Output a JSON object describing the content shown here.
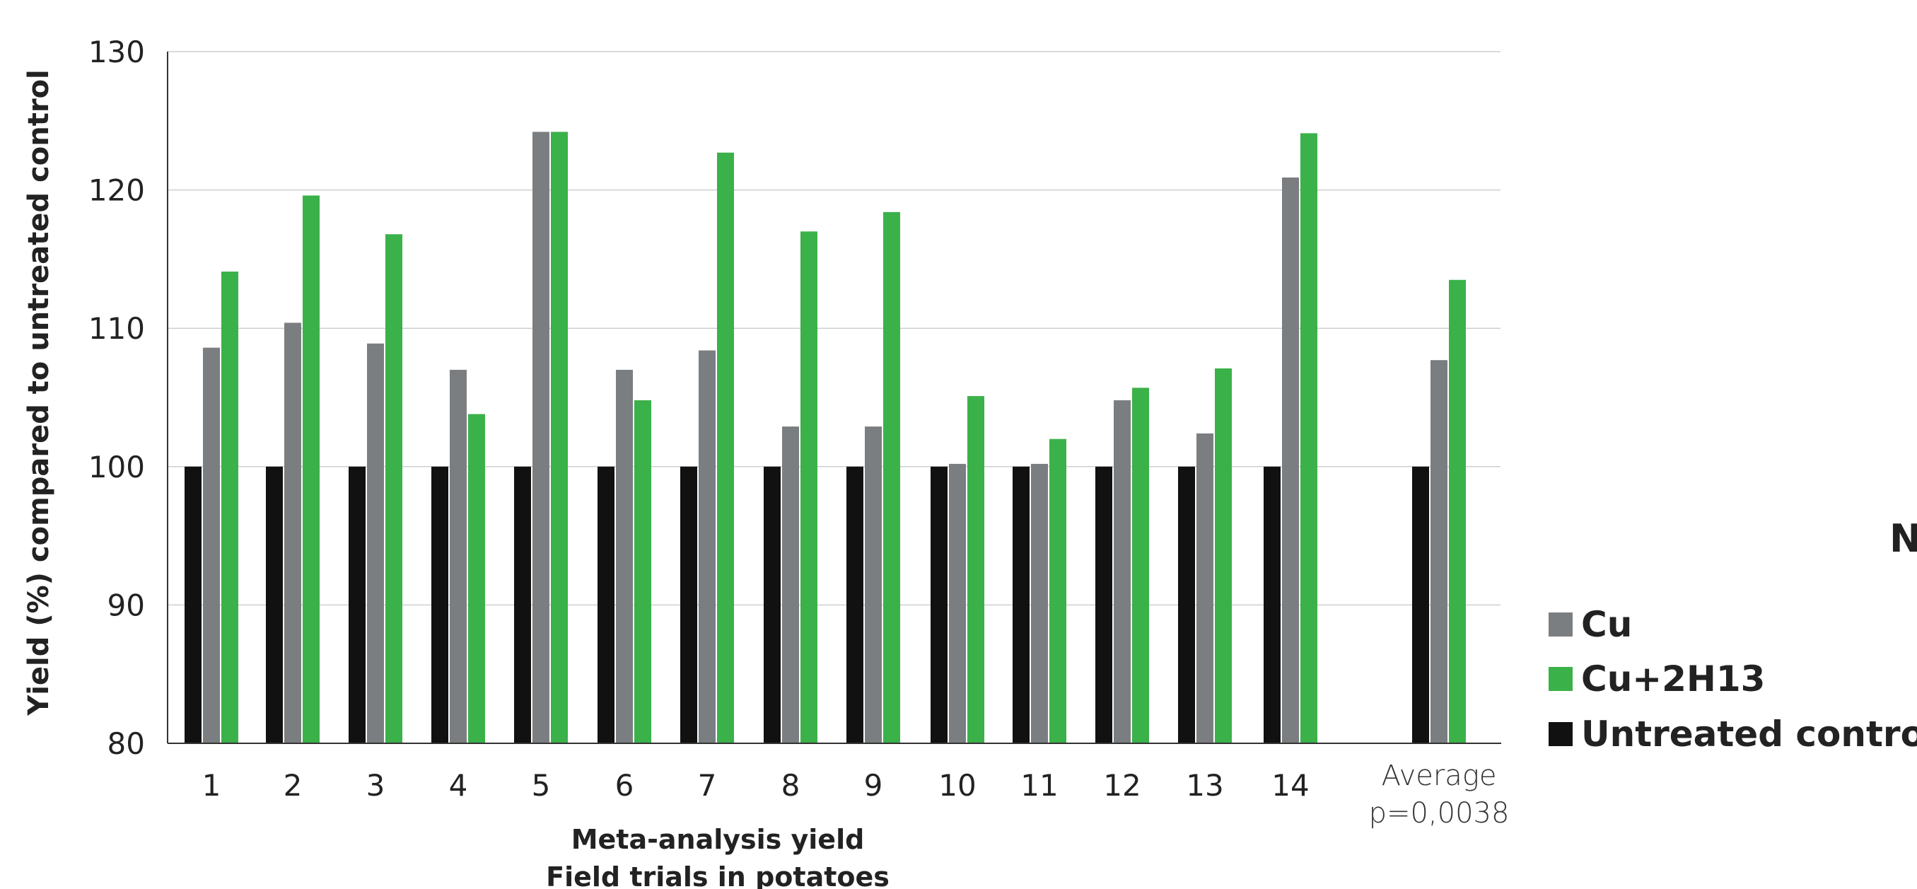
{
  "chart_data": {
    "type": "bar",
    "ylabel": "Yield (%) compared to untreated control",
    "xlabel_line1": "Meta-analysis yield",
    "xlabel_line2": "Field trials in potatoes",
    "ylim": [
      80,
      130
    ],
    "yticks": [
      80,
      90,
      100,
      110,
      120,
      130
    ],
    "grid": true,
    "legend_position": "right",
    "categories": [
      "1",
      "2",
      "3",
      "4",
      "5",
      "6",
      "7",
      "8",
      "9",
      "10",
      "11",
      "12",
      "13",
      "14",
      "Average"
    ],
    "average_label": "Average",
    "average_note": "p=0,0038",
    "series": [
      {
        "name": "Untreated control",
        "color": "#111111",
        "values": [
          100,
          100,
          100,
          100,
          100,
          100,
          100,
          100,
          100,
          100,
          100,
          100,
          100,
          100,
          100
        ]
      },
      {
        "name": "Cu",
        "color": "#7b7e81",
        "values": [
          108.6,
          110.4,
          108.9,
          107.0,
          124.2,
          107.0,
          108.4,
          102.9,
          102.9,
          100.2,
          100.2,
          104.8,
          102.4,
          120.9,
          107.7
        ]
      },
      {
        "name": "Cu+2H13",
        "color": "#3bb14a",
        "values": [
          114.1,
          119.6,
          116.8,
          103.8,
          124.2,
          104.8,
          122.7,
          117.0,
          118.4,
          105.1,
          102.0,
          105.7,
          107.1,
          124.1,
          113.5
        ]
      }
    ]
  },
  "legend": [
    {
      "label": "Cu",
      "color": "#7b7e81"
    },
    {
      "label": "Cu+2H13",
      "color": "#3bb14a"
    },
    {
      "label": "Untreated control",
      "color": "#111111"
    }
  ],
  "edge_text": "N"
}
